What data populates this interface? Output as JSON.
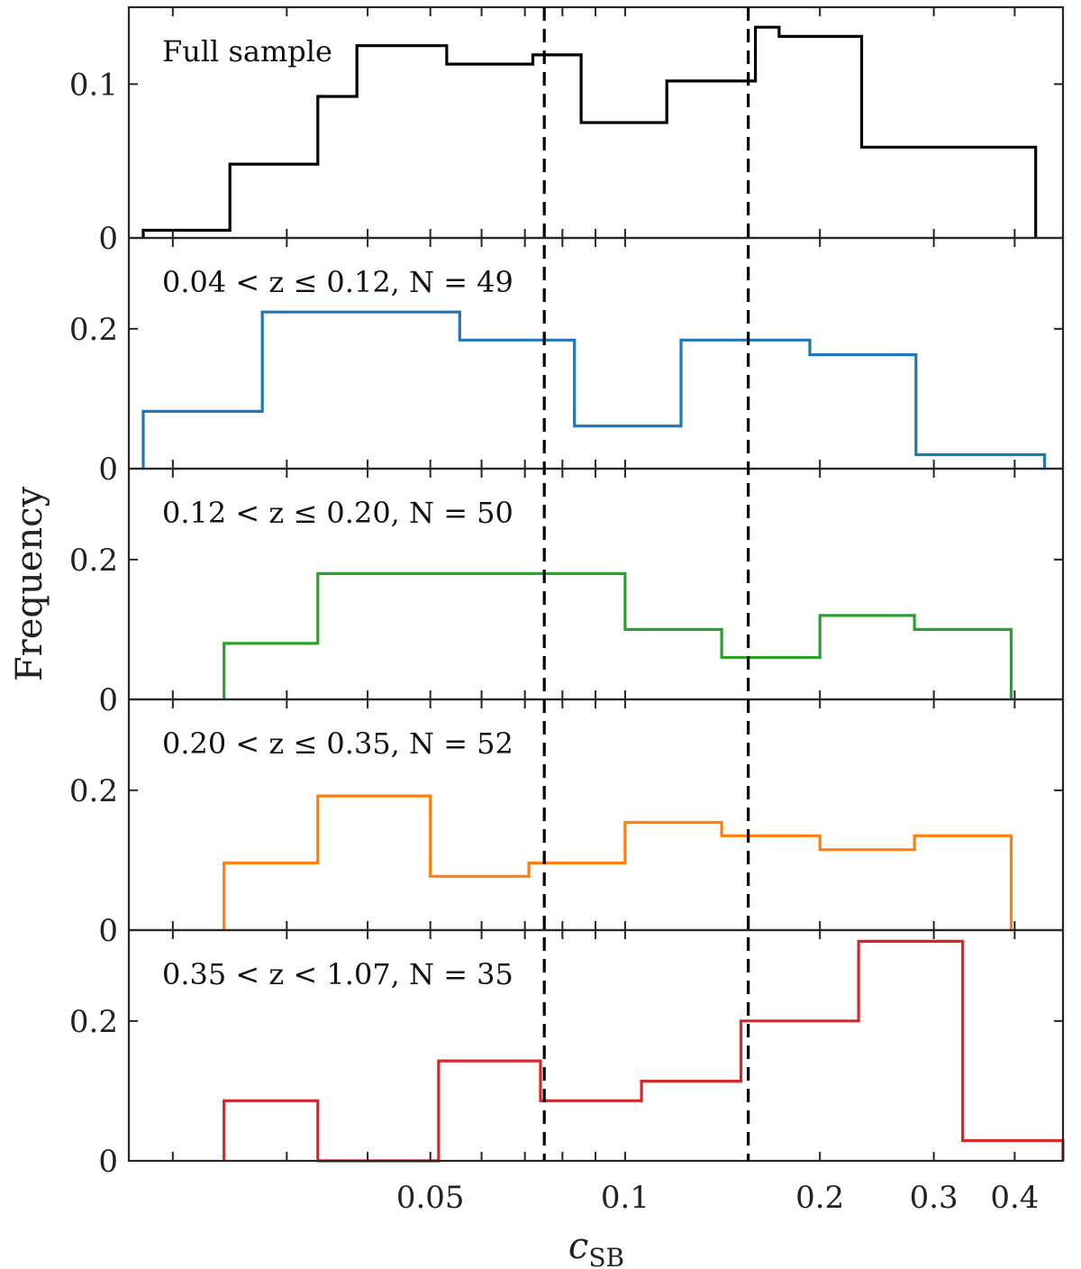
{
  "chart_data": {
    "type": "histogram",
    "ylabel": "Frequency",
    "xlabel": "c_SB",
    "xlabel_main": "c",
    "xlabel_sub": "SB",
    "xscale": "log",
    "xlim": [
      0.0171,
      0.475
    ],
    "xticks": [
      {
        "value": 0.05,
        "label": "0.05"
      },
      {
        "value": 0.1,
        "label": "0.1"
      },
      {
        "value": 0.2,
        "label": "0.2"
      },
      {
        "value": 0.3,
        "label": "0.3"
      },
      {
        "value": 0.4,
        "label": "0.4"
      }
    ],
    "xminor_ticks": [
      0.02,
      0.03,
      0.04,
      0.06,
      0.07,
      0.08,
      0.09
    ],
    "vlines": [
      0.075,
      0.155
    ],
    "panels": [
      {
        "name": "full",
        "title": "Full sample",
        "color": "#000000",
        "ylim": [
          0,
          0.15
        ],
        "yticks": [
          {
            "value": 0,
            "label": "0"
          },
          {
            "value": 0.1,
            "label": "0.1"
          }
        ],
        "edges": [
          0.018,
          0.0245,
          0.0335,
          0.0385,
          0.053,
          0.072,
          0.0855,
          0.116,
          0.159,
          0.173,
          0.232,
          0.3165,
          0.431
        ],
        "values": [
          0.005,
          0.048,
          0.092,
          0.125,
          0.113,
          0.119,
          0.075,
          0.102,
          0.137,
          0.131,
          0.059,
          0.059
        ]
      },
      {
        "name": "bin1",
        "title": "0.04 < z ≤ 0.12, N = 49",
        "color": "#1f77b4",
        "ylim": [
          0,
          0.33
        ],
        "yticks": [
          {
            "value": 0,
            "label": "0"
          },
          {
            "value": 0.2,
            "label": "0.2"
          }
        ],
        "edges": [
          0.018,
          0.0275,
          0.0555,
          0.0835,
          0.122,
          0.193,
          0.2815,
          0.445
        ],
        "values": [
          0.082,
          0.224,
          0.184,
          0.061,
          0.184,
          0.163,
          0.02
        ]
      },
      {
        "name": "bin2",
        "title": "0.12 < z ≤ 0.20, N = 50",
        "color": "#2ca02c",
        "ylim": [
          0,
          0.33
        ],
        "yticks": [
          {
            "value": 0,
            "label": "0"
          },
          {
            "value": 0.2,
            "label": "0.2"
          }
        ],
        "edges": [
          0.024,
          0.0335,
          0.1,
          0.141,
          0.2,
          0.28,
          0.395
        ],
        "values": [
          0.08,
          0.18,
          0.1,
          0.06,
          0.12,
          0.1
        ]
      },
      {
        "name": "bin3",
        "title": "0.20 < z ≤ 0.35, N = 52",
        "color": "#ff7f0e",
        "ylim": [
          0,
          0.33
        ],
        "yticks": [
          {
            "value": 0,
            "label": "0"
          },
          {
            "value": 0.2,
            "label": "0.2"
          }
        ],
        "edges": [
          0.024,
          0.0335,
          0.05,
          0.071,
          0.1,
          0.141,
          0.2,
          0.28,
          0.395
        ],
        "values": [
          0.096,
          0.192,
          0.077,
          0.096,
          0.154,
          0.135,
          0.115,
          0.135
        ]
      },
      {
        "name": "bin4",
        "title": "0.35 < z < 1.07, N = 35",
        "color": "#d62728",
        "ylim": [
          0,
          0.33
        ],
        "yticks": [
          {
            "value": 0,
            "label": "0"
          },
          {
            "value": 0.2,
            "label": "0.2"
          }
        ],
        "edges": [
          0.024,
          0.0335,
          0.0515,
          0.074,
          0.106,
          0.151,
          0.2295,
          0.3325,
          0.475
        ],
        "values": [
          0.086,
          0.0,
          0.143,
          0.086,
          0.114,
          0.2,
          0.314,
          0.029
        ]
      }
    ]
  }
}
